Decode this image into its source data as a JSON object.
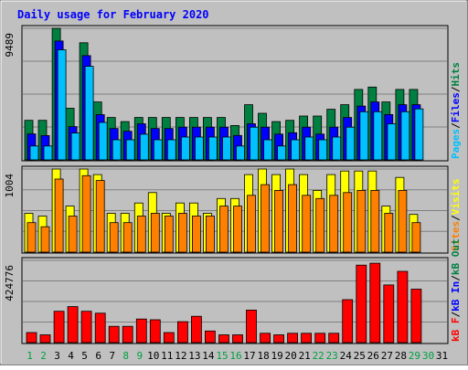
{
  "chart_data": {
    "type": "bar",
    "title": "Daily usage for February 2020",
    "categories": [
      "1",
      "2",
      "3",
      "4",
      "5",
      "6",
      "7",
      "8",
      "9",
      "10",
      "11",
      "12",
      "13",
      "14",
      "15",
      "16",
      "17",
      "18",
      "19",
      "20",
      "21",
      "22",
      "23",
      "24",
      "25",
      "26",
      "27",
      "28",
      "29",
      "30",
      "31"
    ],
    "weekend_days": [
      "1",
      "2",
      "8",
      "9",
      "15",
      "16",
      "22",
      "23",
      "29",
      "30"
    ],
    "panels": [
      {
        "id": "hits",
        "max_label": "9489",
        "ylim": [
          0,
          9489
        ],
        "grid": true,
        "legend": [
          {
            "label": "Pages",
            "color": "#00c0ff"
          },
          {
            "label": "Files",
            "color": "#0000ff"
          },
          {
            "label": "Hits",
            "color": "#008040"
          }
        ],
        "series": [
          {
            "name": "Hits",
            "color": "#008040",
            "values": [
              2850,
              2850,
              9489,
              3720,
              8450,
              4180,
              3060,
              2760,
              3060,
              3060,
              3060,
              3060,
              3060,
              3060,
              3060,
              2480,
              3980,
              3360,
              2760,
              2850,
              3160,
              3160,
              3650,
              3980,
              5080,
              5250,
              4180,
              5080,
              5080,
              null,
              null
            ]
          },
          {
            "name": "Files",
            "color": "#0000ff",
            "values": [
              1870,
              1750,
              8570,
              2400,
              7520,
              3260,
              2260,
              2060,
              2600,
              2260,
              2260,
              2360,
              2360,
              2360,
              2360,
              1760,
              2600,
              2360,
              1860,
              1960,
              2360,
              1860,
              2360,
              3060,
              3880,
              4180,
              3270,
              3980,
              3980,
              null,
              null
            ]
          },
          {
            "name": "Pages",
            "color": "#00c0ff",
            "values": [
              1000,
              1000,
              7940,
              1940,
              6750,
              2700,
              1450,
              1450,
              1850,
              1450,
              1450,
              1650,
              1650,
              1650,
              1650,
              1000,
              2360,
              1450,
              1000,
              1450,
              1650,
              1450,
              1650,
              2360,
              3470,
              3470,
              2600,
              3470,
              3680,
              null,
              null
            ]
          }
        ]
      },
      {
        "id": "visits",
        "max_label": "1004",
        "ylim": [
          0,
          1004
        ],
        "grid": true,
        "legend": [
          {
            "label": "Sites",
            "color": "#ff8000"
          },
          {
            "label": "Visits",
            "color": "#ffff00"
          }
        ],
        "series": [
          {
            "name": "Visits",
            "color": "#ffff00",
            "values": [
              469,
              436,
              1004,
              556,
              1004,
              937,
              469,
              469,
              594,
              719,
              469,
              594,
              594,
              469,
              648,
              648,
              937,
              1004,
              937,
              1004,
              937,
              746,
              937,
              980,
              980,
              980,
              556,
              902,
              456,
              null,
              null
            ]
          },
          {
            "name": "Sites",
            "color": "#ff8000",
            "values": [
              356,
              307,
              883,
              436,
              923,
              865,
              356,
              356,
              436,
              469,
              436,
              469,
              436,
              436,
              556,
              556,
              686,
              815,
              746,
              815,
              686,
              648,
              686,
              719,
              746,
              746,
              469,
              746,
              356,
              null,
              null
            ]
          }
        ]
      },
      {
        "id": "kbytes",
        "max_label": "424776",
        "ylim": [
          0,
          424776
        ],
        "grid": true,
        "legend": [
          {
            "label": "kB F",
            "color": "#ff0000"
          },
          {
            "label": "kB In",
            "color": "#0000ff"
          },
          {
            "label": "kB Out",
            "color": "#008040"
          }
        ],
        "series": [
          {
            "name": "kB F",
            "color": "#ff0000",
            "values": [
              52000,
              40000,
              162000,
              186000,
              162000,
              152000,
              84000,
              84000,
              122000,
              118000,
              52000,
              108000,
              136000,
              60000,
              40000,
              40000,
              168000,
              48000,
              40000,
              48000,
              48000,
              48000,
              48000,
              222000,
              400000,
              410000,
              298000,
              368000,
              276000,
              null,
              null
            ]
          }
        ]
      }
    ]
  }
}
